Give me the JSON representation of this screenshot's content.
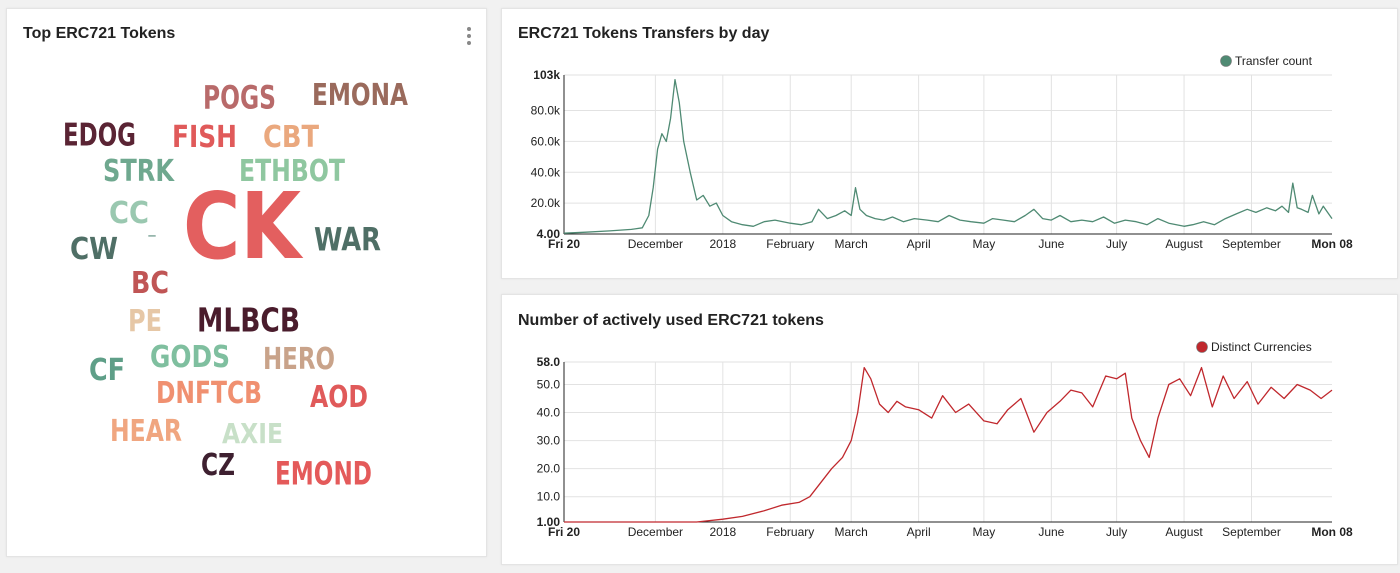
{
  "wordcloud": {
    "title": "Top ERC721 Tokens",
    "words": [
      {
        "text": "POGS",
        "color": "#b86a6a"
      },
      {
        "text": "EMONA",
        "color": "#9a6a5c"
      },
      {
        "text": "EDOG",
        "color": "#5a2434"
      },
      {
        "text": "FISH",
        "color": "#e05a5a"
      },
      {
        "text": "CBT",
        "color": "#eaa87e"
      },
      {
        "text": "STRK",
        "color": "#6fa88f"
      },
      {
        "text": "ETHBOT",
        "color": "#8fc7a0"
      },
      {
        "text": "CK",
        "color": "#e35f5f"
      },
      {
        "text": "CC",
        "color": "#9ac8b0"
      },
      {
        "text": "-",
        "color": "#5f8f80"
      },
      {
        "text": "CW",
        "color": "#4f6f66"
      },
      {
        "text": "WAR",
        "color": "#4f6f66"
      },
      {
        "text": "BC",
        "color": "#c05555"
      },
      {
        "text": "PE",
        "color": "#e6c7a6"
      },
      {
        "text": "MLBCB",
        "color": "#4a1c2c"
      },
      {
        "text": "CF",
        "color": "#5f9f88"
      },
      {
        "text": "GODS",
        "color": "#7fbf9f"
      },
      {
        "text": "HERO",
        "color": "#c9a38a"
      },
      {
        "text": "DNFTCB",
        "color": "#f09070"
      },
      {
        "text": "AOD",
        "color": "#e05a5a"
      },
      {
        "text": "HEAR",
        "color": "#f0a680"
      },
      {
        "text": "AXIE",
        "color": "#c8e0c8"
      },
      {
        "text": "CZ",
        "color": "#3e2030"
      },
      {
        "text": "EMOND",
        "color": "#e45a5a"
      }
    ]
  },
  "chart_data": [
    {
      "type": "line",
      "title": "ERC721 Tokens Transfers by day",
      "xlabel": "",
      "ylabel": "",
      "x_ticks": [
        "Fri 20",
        "December",
        "2018",
        "February",
        "March",
        "April",
        "May",
        "June",
        "July",
        "August",
        "September",
        "Mon 08"
      ],
      "y_ticks": [
        "4.00",
        "20.0k",
        "40.0k",
        "60.0k",
        "80.0k",
        "103k"
      ],
      "ylim": [
        4,
        103000
      ],
      "grid": true,
      "legend_position": "top-right",
      "series": [
        {
          "name": "Transfer count",
          "color": "#4f8a73",
          "x": [
            "2017-10-20",
            "2017-10-30",
            "2017-11-10",
            "2017-11-20",
            "2017-11-25",
            "2017-11-28",
            "2017-11-30",
            "2017-12-02",
            "2017-12-04",
            "2017-12-06",
            "2017-12-08",
            "2017-12-10",
            "2017-12-12",
            "2017-12-14",
            "2017-12-17",
            "2017-12-20",
            "2017-12-23",
            "2017-12-26",
            "2017-12-29",
            "2018-01-01",
            "2018-01-05",
            "2018-01-10",
            "2018-01-15",
            "2018-01-20",
            "2018-01-25",
            "2018-02-01",
            "2018-02-06",
            "2018-02-11",
            "2018-02-14",
            "2018-02-18",
            "2018-02-22",
            "2018-02-26",
            "2018-03-01",
            "2018-03-03",
            "2018-03-05",
            "2018-03-08",
            "2018-03-12",
            "2018-03-16",
            "2018-03-20",
            "2018-03-25",
            "2018-03-30",
            "2018-04-05",
            "2018-04-10",
            "2018-04-15",
            "2018-04-20",
            "2018-04-25",
            "2018-05-01",
            "2018-05-05",
            "2018-05-10",
            "2018-05-15",
            "2018-05-20",
            "2018-05-24",
            "2018-05-28",
            "2018-06-01",
            "2018-06-05",
            "2018-06-10",
            "2018-06-15",
            "2018-06-20",
            "2018-06-25",
            "2018-06-30",
            "2018-07-05",
            "2018-07-10",
            "2018-07-15",
            "2018-07-20",
            "2018-07-25",
            "2018-08-01",
            "2018-08-05",
            "2018-08-10",
            "2018-08-15",
            "2018-08-20",
            "2018-08-25",
            "2018-08-30",
            "2018-09-03",
            "2018-09-08",
            "2018-09-12",
            "2018-09-15",
            "2018-09-18",
            "2018-09-20",
            "2018-09-22",
            "2018-09-24",
            "2018-09-27",
            "2018-09-29",
            "2018-10-02",
            "2018-10-04",
            "2018-10-06",
            "2018-10-08"
          ],
          "values": [
            500,
            1200,
            2000,
            3000,
            4000,
            12000,
            30000,
            55000,
            65000,
            60000,
            75000,
            100000,
            85000,
            60000,
            40000,
            22000,
            25000,
            18000,
            20000,
            12000,
            8000,
            6000,
            5000,
            8000,
            9000,
            7000,
            6000,
            8000,
            16000,
            10000,
            12000,
            15000,
            12000,
            30000,
            16000,
            12000,
            10000,
            9000,
            11000,
            8000,
            10000,
            9000,
            8000,
            12000,
            9000,
            8000,
            7000,
            10000,
            9000,
            8000,
            12000,
            16000,
            10000,
            9000,
            12000,
            8000,
            9000,
            8000,
            11000,
            7000,
            9000,
            8000,
            6000,
            10000,
            7000,
            5000,
            6000,
            8000,
            6000,
            10000,
            13000,
            16000,
            14000,
            17000,
            15000,
            18000,
            14000,
            33000,
            17000,
            16000,
            14000,
            25000,
            13000,
            18000,
            14000,
            10000
          ]
        }
      ]
    },
    {
      "type": "line",
      "title": "Number of actively used ERC721 tokens",
      "xlabel": "",
      "ylabel": "",
      "x_ticks": [
        "Fri 20",
        "December",
        "2018",
        "February",
        "March",
        "April",
        "May",
        "June",
        "July",
        "August",
        "September",
        "Mon 08"
      ],
      "y_ticks": [
        "1.00",
        "10.0",
        "20.0",
        "30.0",
        "40.0",
        "50.0",
        "58.0"
      ],
      "ylim": [
        1,
        58
      ],
      "grid": true,
      "legend_position": "top-right",
      "series": [
        {
          "name": "Distinct Currencies",
          "color": "#c0282d",
          "x": [
            "2017-10-20",
            "2017-11-15",
            "2017-12-01",
            "2017-12-20",
            "2018-01-01",
            "2018-01-10",
            "2018-01-20",
            "2018-01-28",
            "2018-02-05",
            "2018-02-10",
            "2018-02-15",
            "2018-02-20",
            "2018-02-25",
            "2018-03-01",
            "2018-03-04",
            "2018-03-07",
            "2018-03-10",
            "2018-03-14",
            "2018-03-18",
            "2018-03-22",
            "2018-03-26",
            "2018-04-01",
            "2018-04-07",
            "2018-04-12",
            "2018-04-18",
            "2018-04-24",
            "2018-05-01",
            "2018-05-07",
            "2018-05-12",
            "2018-05-18",
            "2018-05-24",
            "2018-05-30",
            "2018-06-05",
            "2018-06-10",
            "2018-06-15",
            "2018-06-20",
            "2018-06-26",
            "2018-07-01",
            "2018-07-05",
            "2018-07-08",
            "2018-07-12",
            "2018-07-16",
            "2018-07-20",
            "2018-07-25",
            "2018-07-30",
            "2018-08-04",
            "2018-08-09",
            "2018-08-14",
            "2018-08-19",
            "2018-08-24",
            "2018-08-30",
            "2018-09-04",
            "2018-09-10",
            "2018-09-16",
            "2018-09-22",
            "2018-09-28",
            "2018-10-03",
            "2018-10-08"
          ],
          "values": [
            1,
            1,
            1,
            1,
            2,
            3,
            5,
            7,
            8,
            10,
            15,
            20,
            24,
            30,
            40,
            56,
            52,
            43,
            40,
            44,
            42,
            41,
            38,
            46,
            40,
            43,
            37,
            36,
            41,
            45,
            33,
            40,
            44,
            48,
            47,
            42,
            53,
            52,
            54,
            38,
            30,
            24,
            38,
            50,
            52,
            46,
            56,
            42,
            53,
            45,
            51,
            43,
            49,
            45,
            50,
            48,
            45,
            48
          ]
        }
      ]
    }
  ]
}
